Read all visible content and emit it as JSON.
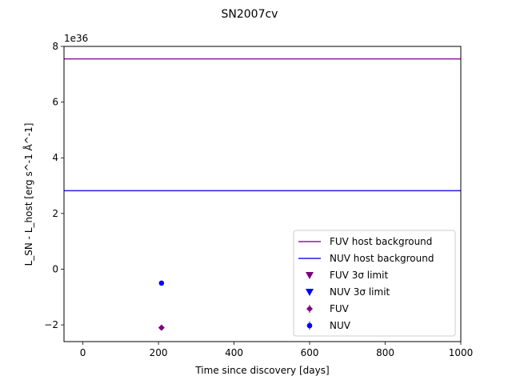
{
  "chart_data": {
    "type": "scatter",
    "title": "SN2007cv",
    "xlabel": "Time since discovery [days]",
    "ylabel": "L_SN - L_host [erg s^-1 Å^-1]",
    "y_scale_label": "1e36",
    "xlim": [
      -50,
      1000
    ],
    "ylim": [
      -2.6,
      8.0
    ],
    "x_ticks": [
      0,
      200,
      400,
      600,
      800,
      1000
    ],
    "y_ticks": [
      -2,
      0,
      2,
      4,
      6,
      8
    ],
    "x_tick_labels": [
      "0",
      "200",
      "400",
      "600",
      "800",
      "1000"
    ],
    "y_tick_labels": [
      "−2",
      "0",
      "2",
      "4",
      "6",
      "8"
    ],
    "grid": false,
    "legend_position": "lower-right",
    "series": [
      {
        "name": "FUV host background",
        "kind": "hline",
        "value": 7.55,
        "color": "#8b1a9e"
      },
      {
        "name": "NUV host background",
        "kind": "hline",
        "value": 2.82,
        "color": "#1f1fe6"
      },
      {
        "name": "FUV 3σ limit",
        "kind": "limit",
        "marker": "triangle-down",
        "color": "#800080",
        "points": []
      },
      {
        "name": "NUV 3σ limit",
        "kind": "limit",
        "marker": "triangle-down",
        "color": "#0000ff",
        "points": []
      },
      {
        "name": "FUV",
        "kind": "points",
        "marker": "diamond",
        "color": "#800080",
        "points": [
          {
            "x": 208,
            "y": -2.1
          }
        ]
      },
      {
        "name": "NUV",
        "kind": "points",
        "marker": "circle",
        "color": "#0000ff",
        "points": [
          {
            "x": 208,
            "y": -0.5
          }
        ]
      }
    ]
  }
}
